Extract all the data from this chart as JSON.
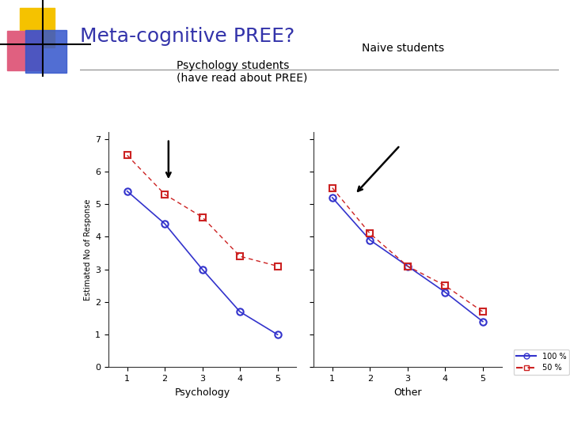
{
  "title": "Meta-cognitive PREE?",
  "title_color": "#3333aa",
  "background_color": "#ffffff",
  "ylabel": "Estimated No of Response",
  "xlabel_left": "Psychology",
  "xlabel_right": "Other",
  "x_ticks": [
    1,
    2,
    3,
    4,
    5
  ],
  "y_ticks": [
    0,
    1,
    2,
    3,
    4,
    5,
    6,
    7
  ],
  "ylim": [
    0,
    7.2
  ],
  "psych_100_x": [
    1,
    2,
    3,
    4,
    5
  ],
  "psych_100_y": [
    5.4,
    4.4,
    3.0,
    1.7,
    1.0
  ],
  "psych_50_x": [
    1,
    2,
    3,
    4,
    5
  ],
  "psych_50_y": [
    6.5,
    5.3,
    4.6,
    3.4,
    3.1
  ],
  "other_100_x": [
    1,
    2,
    3,
    4,
    5
  ],
  "other_100_y": [
    5.2,
    3.9,
    3.1,
    2.3,
    1.4
  ],
  "other_50_x": [
    1,
    2,
    3,
    4,
    5
  ],
  "other_50_y": [
    5.5,
    4.1,
    3.1,
    2.5,
    1.7
  ],
  "color_100": "#3333cc",
  "color_50": "#cc2222",
  "legend_100": "100 %",
  "legend_50": "50 %",
  "label_psych": "Psychology students\n(have read about PREE)",
  "label_naive": "Naive students"
}
